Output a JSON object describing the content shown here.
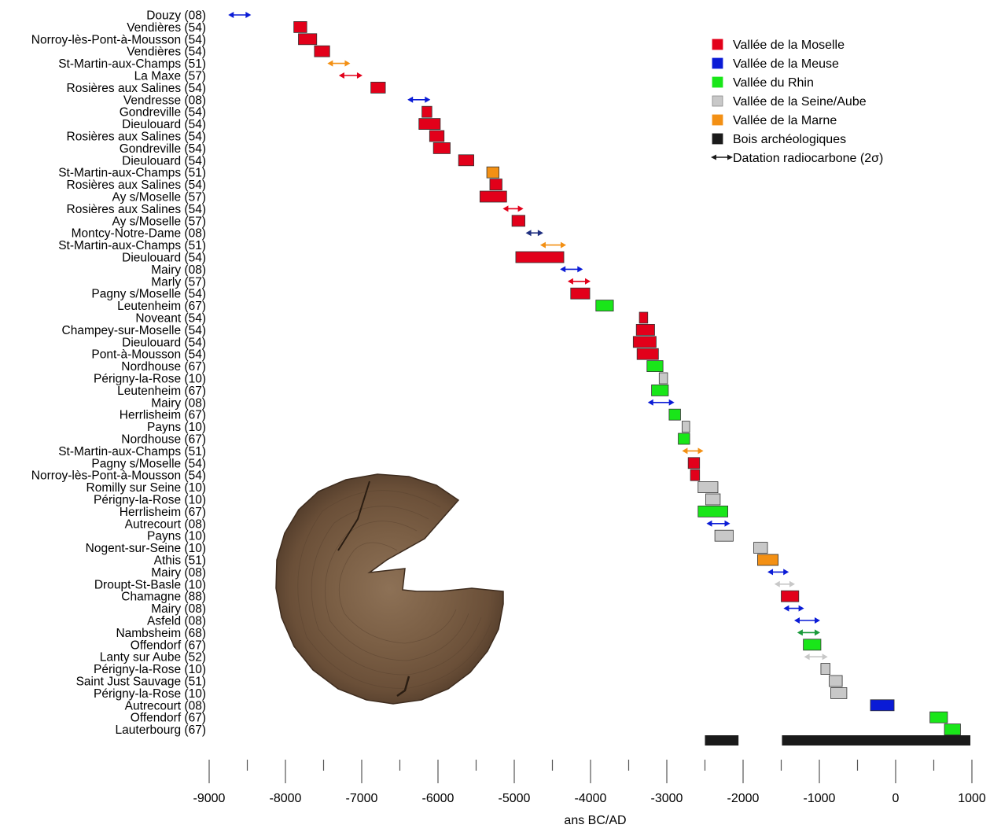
{
  "chart_data": {
    "type": "range-bar",
    "xlabel": "ans BC/AD",
    "xlim": [
      -9000,
      1000
    ],
    "xticks": [
      -9000,
      -8000,
      -7000,
      -6000,
      -5000,
      -4000,
      -3000,
      -2000,
      -1000,
      0,
      1000
    ],
    "minor_xticks": [
      -8500,
      -7500,
      -6500,
      -5500,
      -4500,
      -3500,
      -2500,
      -1500,
      -500,
      500
    ],
    "colors": {
      "moselle": "#e2001a",
      "meuse": "#0a1bd6",
      "rhin": "#19e619",
      "seine": "#c8c8c8",
      "marne": "#f39014",
      "bois": "#1a1a1a",
      "meuse_dark": "#1f2f80",
      "rhin_dark": "#1a9a3a"
    },
    "legend": {
      "position": "top-right",
      "items": [
        {
          "label": "Vallée de la Moselle",
          "kind": "box",
          "color_key": "moselle"
        },
        {
          "label": "Vallée de la Meuse",
          "kind": "box",
          "color_key": "meuse"
        },
        {
          "label": "Vallée du Rhin",
          "kind": "box",
          "color_key": "rhin"
        },
        {
          "label": "Vallée de la Seine/Aube",
          "kind": "box",
          "color_key": "seine"
        },
        {
          "label": "Vallée de la Marne",
          "kind": "box",
          "color_key": "marne"
        },
        {
          "label": "Bois archéologiques",
          "kind": "box",
          "color_key": "bois"
        },
        {
          "label": "Datation radiocarbone (2σ)",
          "kind": "arrow",
          "color_key": "bois"
        }
      ]
    },
    "rows": [
      {
        "label": "Douzy (08)",
        "start": -8750,
        "end": -8450,
        "kind": "arrow",
        "color_key": "meuse"
      },
      {
        "label": "Vendières (54)",
        "start": -7890,
        "end": -7720,
        "kind": "box",
        "color_key": "moselle"
      },
      {
        "label": "Norroy-lès-Pont-à-Mousson (54)",
        "start": -7830,
        "end": -7590,
        "kind": "box",
        "color_key": "moselle"
      },
      {
        "label": "Vendières (54)",
        "start": -7620,
        "end": -7420,
        "kind": "box",
        "color_key": "moselle"
      },
      {
        "label": "St-Martin-aux-Champs (51)",
        "start": -7450,
        "end": -7150,
        "kind": "arrow",
        "color_key": "marne"
      },
      {
        "label": "La Maxe (57)",
        "start": -7300,
        "end": -6990,
        "kind": "arrow",
        "color_key": "moselle"
      },
      {
        "label": "Rosières aux Salines (54)",
        "start": -6880,
        "end": -6690,
        "kind": "box",
        "color_key": "moselle"
      },
      {
        "label": "Vendresse (08)",
        "start": -6400,
        "end": -6100,
        "kind": "arrow",
        "color_key": "meuse"
      },
      {
        "label": "Gondreville (54)",
        "start": -6210,
        "end": -6080,
        "kind": "box",
        "color_key": "moselle"
      },
      {
        "label": "Dieulouard (54)",
        "start": -6250,
        "end": -5970,
        "kind": "box",
        "color_key": "moselle"
      },
      {
        "label": "Rosières aux Salines (54)",
        "start": -6110,
        "end": -5920,
        "kind": "box",
        "color_key": "moselle"
      },
      {
        "label": "Gondreville (54)",
        "start": -6060,
        "end": -5840,
        "kind": "box",
        "color_key": "moselle"
      },
      {
        "label": "Dieulouard (54)",
        "start": -5730,
        "end": -5530,
        "kind": "box",
        "color_key": "moselle"
      },
      {
        "label": "St-Martin-aux-Champs (51)",
        "start": -5360,
        "end": -5200,
        "kind": "box",
        "color_key": "marne"
      },
      {
        "label": "Rosières aux Salines (54)",
        "start": -5320,
        "end": -5160,
        "kind": "box",
        "color_key": "moselle"
      },
      {
        "label": "Ay s/Moselle (57)",
        "start": -5450,
        "end": -5100,
        "kind": "box",
        "color_key": "moselle"
      },
      {
        "label": "Rosières aux Salines (54)",
        "start": -5150,
        "end": -4880,
        "kind": "arrow",
        "color_key": "moselle"
      },
      {
        "label": "Ay s/Moselle (57)",
        "start": -5030,
        "end": -4860,
        "kind": "box",
        "color_key": "moselle"
      },
      {
        "label": "Montcy-Notre-Dame (08)",
        "start": -4850,
        "end": -4620,
        "kind": "arrow",
        "color_key": "meuse_dark"
      },
      {
        "label": "St-Martin-aux-Champs (51)",
        "start": -4660,
        "end": -4320,
        "kind": "arrow",
        "color_key": "marne"
      },
      {
        "label": "Dieulouard (54)",
        "start": -4980,
        "end": -4350,
        "kind": "box",
        "color_key": "moselle"
      },
      {
        "label": "Mairy (08)",
        "start": -4400,
        "end": -4100,
        "kind": "arrow",
        "color_key": "meuse"
      },
      {
        "label": "Marly (57)",
        "start": -4300,
        "end": -4000,
        "kind": "arrow",
        "color_key": "moselle"
      },
      {
        "label": "Pagny s/Moselle (54)",
        "start": -4260,
        "end": -4010,
        "kind": "box",
        "color_key": "moselle"
      },
      {
        "label": "Leutenheim (67)",
        "start": -3930,
        "end": -3700,
        "kind": "box",
        "color_key": "rhin"
      },
      {
        "label": "Noveant (54)",
        "start": -3360,
        "end": -3250,
        "kind": "box",
        "color_key": "moselle"
      },
      {
        "label": "Champey-sur-Moselle (54)",
        "start": -3400,
        "end": -3160,
        "kind": "box",
        "color_key": "moselle"
      },
      {
        "label": "Dieulouard (54)",
        "start": -3440,
        "end": -3140,
        "kind": "box",
        "color_key": "moselle"
      },
      {
        "label": "Pont-à-Mousson (54)",
        "start": -3390,
        "end": -3110,
        "kind": "box",
        "color_key": "moselle"
      },
      {
        "label": "Nordhouse (67)",
        "start": -3260,
        "end": -3050,
        "kind": "box",
        "color_key": "rhin"
      },
      {
        "label": "Périgny-la-Rose (10)",
        "start": -3100,
        "end": -2990,
        "kind": "box",
        "color_key": "seine"
      },
      {
        "label": "Leutenheim (67)",
        "start": -3200,
        "end": -2980,
        "kind": "box",
        "color_key": "rhin"
      },
      {
        "label": "Mairy (08)",
        "start": -3250,
        "end": -2900,
        "kind": "arrow",
        "color_key": "meuse"
      },
      {
        "label": "Herrlisheim (67)",
        "start": -2970,
        "end": -2820,
        "kind": "box",
        "color_key": "rhin"
      },
      {
        "label": "Payns (10)",
        "start": -2800,
        "end": -2700,
        "kind": "box",
        "color_key": "seine"
      },
      {
        "label": "Nordhouse (67)",
        "start": -2850,
        "end": -2700,
        "kind": "box",
        "color_key": "rhin"
      },
      {
        "label": "St-Martin-aux-Champs (51)",
        "start": -2800,
        "end": -2520,
        "kind": "arrow",
        "color_key": "marne"
      },
      {
        "label": "Pagny s/Moselle (54)",
        "start": -2720,
        "end": -2570,
        "kind": "box",
        "color_key": "moselle"
      },
      {
        "label": "Norroy-lès-Pont-à-Mousson (54)",
        "start": -2690,
        "end": -2570,
        "kind": "box",
        "color_key": "moselle"
      },
      {
        "label": "Romilly sur Seine (10)",
        "start": -2590,
        "end": -2330,
        "kind": "box",
        "color_key": "seine"
      },
      {
        "label": "Périgny-la-Rose (10)",
        "start": -2490,
        "end": -2300,
        "kind": "box",
        "color_key": "seine"
      },
      {
        "label": "Herrlisheim (67)",
        "start": -2590,
        "end": -2200,
        "kind": "box",
        "color_key": "rhin"
      },
      {
        "label": "Autrecourt (08)",
        "start": -2480,
        "end": -2170,
        "kind": "arrow",
        "color_key": "meuse"
      },
      {
        "label": "Payns (10)",
        "start": -2370,
        "end": -2130,
        "kind": "box",
        "color_key": "seine"
      },
      {
        "label": "Nogent-sur-Seine (10)",
        "start": -1860,
        "end": -1680,
        "kind": "box",
        "color_key": "seine"
      },
      {
        "label": "Athis (51)",
        "start": -1810,
        "end": -1540,
        "kind": "box",
        "color_key": "marne"
      },
      {
        "label": "Mairy (08)",
        "start": -1680,
        "end": -1400,
        "kind": "arrow",
        "color_key": "meuse"
      },
      {
        "label": "Droupt-St-Basle (10)",
        "start": -1590,
        "end": -1320,
        "kind": "arrow",
        "color_key": "seine"
      },
      {
        "label": "Chamagne (88)",
        "start": -1500,
        "end": -1270,
        "kind": "box",
        "color_key": "moselle"
      },
      {
        "label": "Mairy (08)",
        "start": -1470,
        "end": -1200,
        "kind": "arrow",
        "color_key": "meuse"
      },
      {
        "label": "Asfeld (08)",
        "start": -1330,
        "end": -990,
        "kind": "arrow",
        "color_key": "meuse"
      },
      {
        "label": "Nambsheim (68)",
        "start": -1290,
        "end": -990,
        "kind": "arrow",
        "color_key": "rhin_dark"
      },
      {
        "label": "Offendorf (67)",
        "start": -1210,
        "end": -980,
        "kind": "box",
        "color_key": "rhin"
      },
      {
        "label": "Lanty sur Aube (52)",
        "start": -1200,
        "end": -890,
        "kind": "arrow",
        "color_key": "seine"
      },
      {
        "label": "Périgny-la-Rose (10)",
        "start": -980,
        "end": -860,
        "kind": "box",
        "color_key": "seine"
      },
      {
        "label": "Saint Just Sauvage (51)",
        "start": -870,
        "end": -700,
        "kind": "box",
        "color_key": "seine"
      },
      {
        "label": "Périgny-la-Rose (10)",
        "start": -850,
        "end": -640,
        "kind": "box",
        "color_key": "seine"
      },
      {
        "label": "Autrecourt (08)",
        "start": -330,
        "end": -20,
        "kind": "box",
        "color_key": "meuse"
      },
      {
        "label": "Offendorf (67)",
        "start": 450,
        "end": 680,
        "kind": "box",
        "color_key": "rhin"
      },
      {
        "label": "Lauterbourg (67)",
        "start": 640,
        "end": 850,
        "kind": "box",
        "color_key": "rhin"
      }
    ],
    "archaeological_wood_bars": [
      {
        "start": -2500,
        "end": -2060
      },
      {
        "start": -1490,
        "end": 980
      }
    ]
  }
}
